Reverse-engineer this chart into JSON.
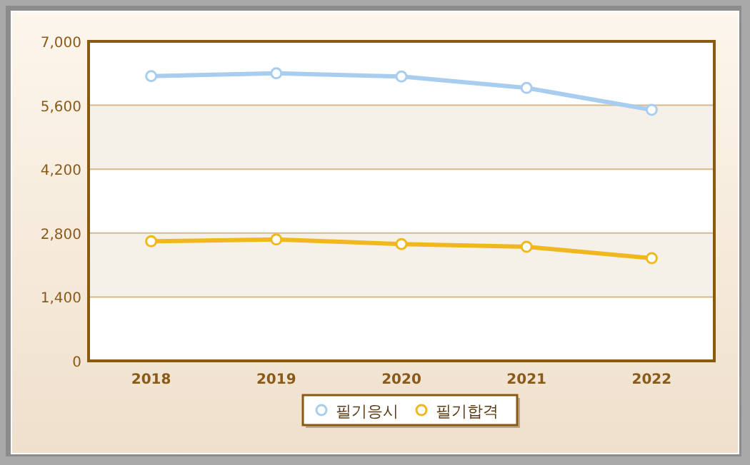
{
  "chart_data": {
    "type": "line",
    "categories": [
      "2018",
      "2019",
      "2020",
      "2021",
      "2022"
    ],
    "series": [
      {
        "name": "필기응시",
        "color": "#a8cdef",
        "values": [
          6240,
          6300,
          6230,
          5980,
          5500
        ]
      },
      {
        "name": "필기합격",
        "color": "#f0b81c",
        "values": [
          2620,
          2660,
          2560,
          2500,
          2250
        ]
      }
    ],
    "ylim": [
      0,
      7000
    ],
    "yticks": [
      0,
      {
        "value": 1400,
        "label": "1,400"
      },
      {
        "value": 2800,
        "label": "2,800"
      },
      {
        "value": 4200,
        "label": "4,200"
      },
      {
        "value": 5600,
        "label": "5,600"
      },
      {
        "value": 7000,
        "label": "7,000"
      }
    ],
    "grid": "y",
    "legend": "bottom",
    "marker": "circle",
    "line_style": "solid"
  }
}
